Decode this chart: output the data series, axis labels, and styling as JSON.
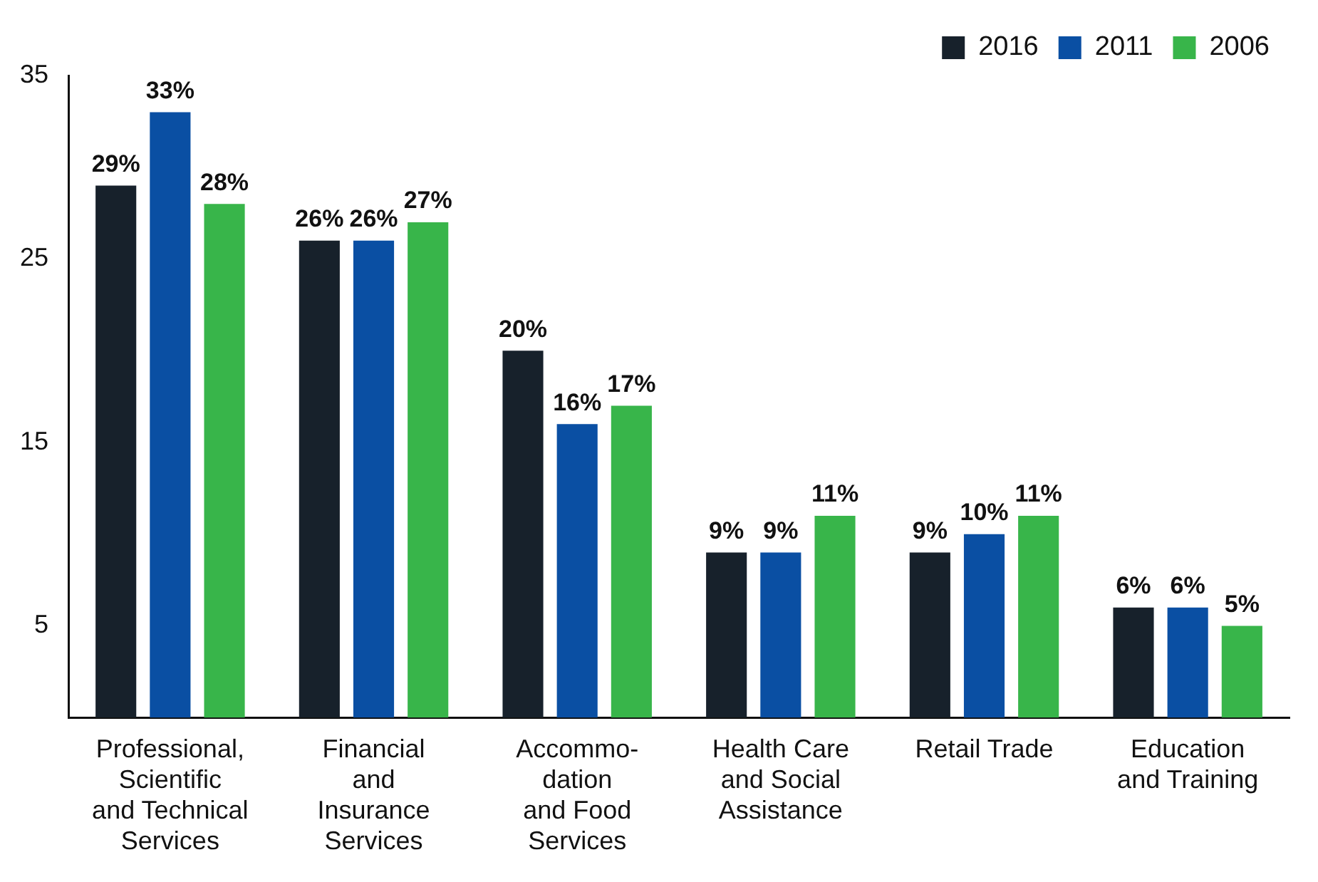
{
  "chart_data": {
    "type": "bar",
    "categories": [
      "Professional,\nScientific\nand Technical\nServices",
      "Financial\nand\nInsurance\nServices",
      "Accommo-\ndation\nand Food\nServices",
      "Health Care\nand Social\nAssistance",
      "Retail Trade",
      "Education\nand Training"
    ],
    "series": [
      {
        "name": "2016",
        "color": "#17212b",
        "values": [
          29,
          26,
          20,
          9,
          9,
          6
        ],
        "value_labels": [
          "29%",
          "26%",
          "20%",
          "9%",
          "9%",
          "6%"
        ]
      },
      {
        "name": "2011",
        "color": "#0a4fa3",
        "values": [
          33,
          26,
          16,
          9,
          10,
          6
        ],
        "value_labels": [
          "33%",
          "26%",
          "16%",
          "9%",
          "10%",
          "6%"
        ]
      },
      {
        "name": "2006",
        "color": "#38b54a",
        "values": [
          28,
          27,
          17,
          11,
          11,
          5
        ],
        "value_labels": [
          "28%",
          "27%",
          "17%",
          "11%",
          "11%",
          "5%"
        ]
      }
    ],
    "ylim": [
      0,
      35
    ],
    "yticks": [
      5,
      15,
      25,
      35
    ],
    "grid": false,
    "legend": "top right"
  }
}
